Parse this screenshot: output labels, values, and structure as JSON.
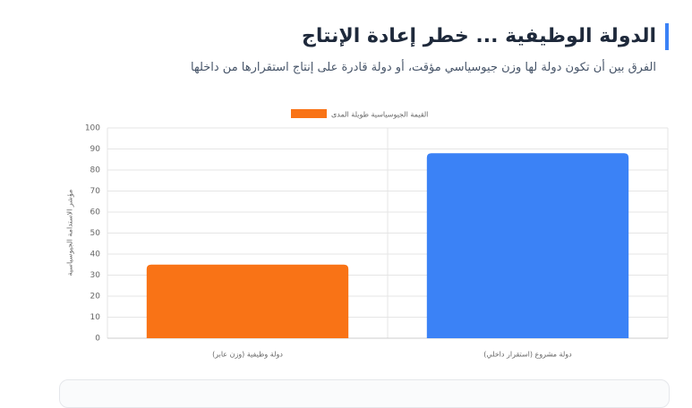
{
  "chart_data": {
    "type": "bar",
    "title": "الدولة الوظيفية ... خطر إعادة الإنتاج",
    "subtitle": "الفرق بين أن تكون دولة لها وزن جيوسياسي مؤقت، أو دولة قادرة على إنتاج استقرارها من داخلها",
    "y_label": "مؤشر الاستدامة الجيوسياسية",
    "categories": [
      "دولة وظيفية (وزن عابر)",
      "دولة مشروع (استقرار داخلي)"
    ],
    "series": [
      {
        "name": "القيمة الجيوسياسية طويلة المدى",
        "color": "#f97316",
        "colors": [
          "#f97316",
          "#3b82f6"
        ],
        "values": [
          35,
          88
        ]
      }
    ],
    "ylim": [
      0,
      100
    ],
    "yticks": [
      0,
      10,
      20,
      30,
      40,
      50,
      60,
      70,
      80,
      90,
      100
    ],
    "grid": true,
    "legend": "top"
  }
}
